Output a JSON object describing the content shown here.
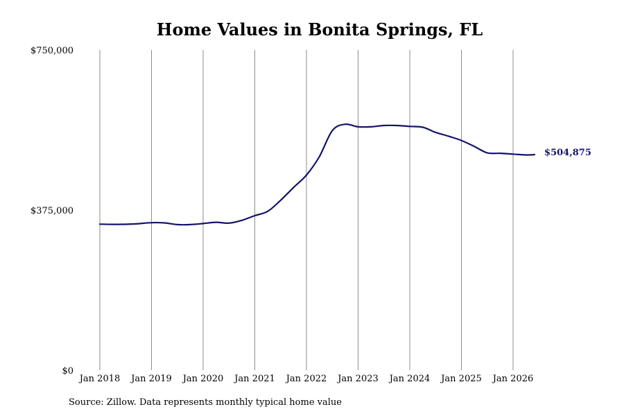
{
  "chart_data": {
    "type": "line",
    "title": "Home Values in Bonita Springs, FL",
    "xlabel": "",
    "ylabel": "",
    "ylim": [
      0,
      750000
    ],
    "xlim": [
      "2018-01",
      "2026-07"
    ],
    "y_tick_labels": [
      "$0",
      "$375,000",
      "$750,000"
    ],
    "y_tick_values": [
      0,
      375000,
      750000
    ],
    "x_tick_labels": [
      "Jan 2018",
      "Jan 2019",
      "Jan 2020",
      "Jan 2021",
      "Jan 2022",
      "Jan 2023",
      "Jan 2024",
      "Jan 2025",
      "Jan 2026"
    ],
    "x_tick_values": [
      "2018-01",
      "2019-01",
      "2020-01",
      "2021-01",
      "2022-01",
      "2023-01",
      "2024-01",
      "2025-01",
      "2026-01"
    ],
    "grid": "vertical",
    "line_color": "#12126b",
    "end_label": "$504,875",
    "series": [
      {
        "points": [
          [
            "2018-01",
            342000
          ],
          [
            "2018-05",
            341500
          ],
          [
            "2018-09",
            342500
          ],
          [
            "2019-01",
            345500
          ],
          [
            "2019-04",
            345000
          ],
          [
            "2019-07",
            341000
          ],
          [
            "2019-10",
            341000
          ],
          [
            "2020-01",
            343500
          ],
          [
            "2020-04",
            346500
          ],
          [
            "2020-07",
            344500
          ],
          [
            "2020-10",
            351000
          ],
          [
            "2021-01",
            362000
          ],
          [
            "2021-04",
            372000
          ],
          [
            "2021-07",
            398000
          ],
          [
            "2021-10",
            428000
          ],
          [
            "2022-01",
            457000
          ],
          [
            "2022-04",
            500000
          ],
          [
            "2022-07",
            561000
          ],
          [
            "2022-10",
            576000
          ],
          [
            "2023-01",
            570000
          ],
          [
            "2023-04",
            570000
          ],
          [
            "2023-07",
            573000
          ],
          [
            "2023-10",
            573000
          ],
          [
            "2024-01",
            571000
          ],
          [
            "2024-04",
            569000
          ],
          [
            "2024-07",
            557000
          ],
          [
            "2024-10",
            548000
          ],
          [
            "2025-01",
            538000
          ],
          [
            "2025-04",
            524000
          ],
          [
            "2025-07",
            509000
          ],
          [
            "2025-10",
            508000
          ],
          [
            "2026-01",
            506000
          ],
          [
            "2026-04",
            504000
          ],
          [
            "2026-06",
            504875
          ]
        ]
      }
    ]
  },
  "source_text": "Source: Zillow. Data represents monthly typical home value"
}
